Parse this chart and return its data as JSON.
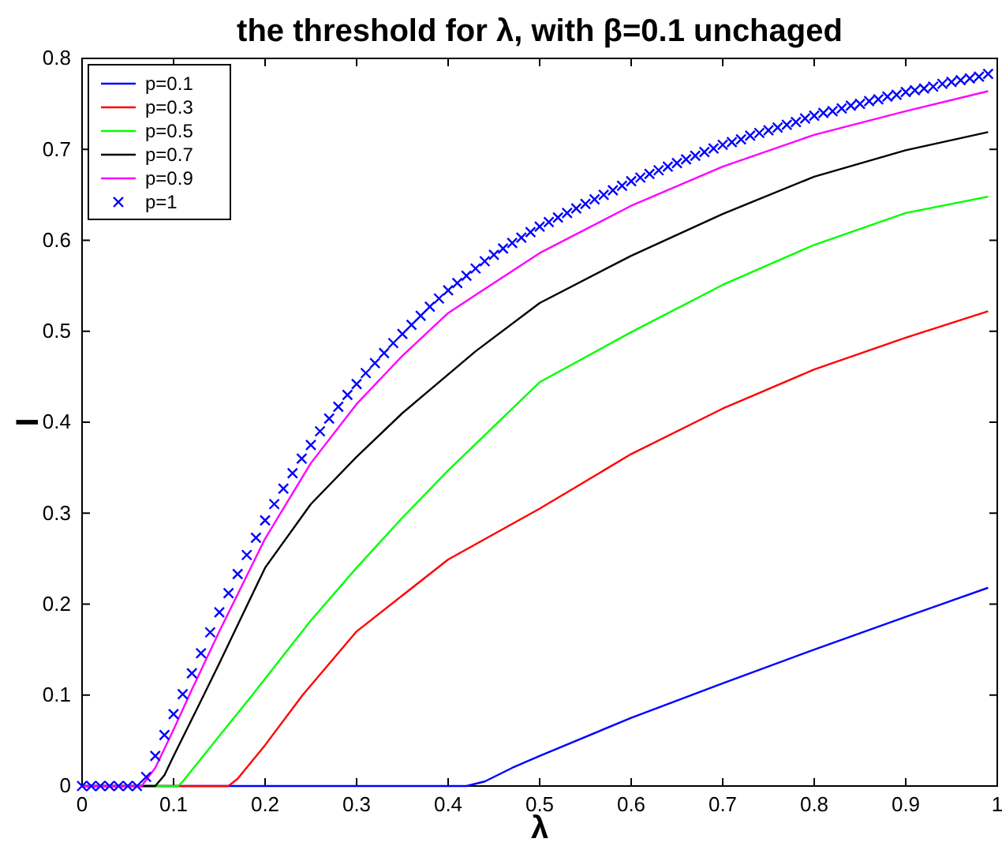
{
  "chart_data": {
    "type": "line",
    "title": "the threshold for λ, with β=0.1 unchaged",
    "xlabel": "λ",
    "ylabel": "I",
    "xlim": [
      0,
      1
    ],
    "ylim": [
      0,
      0.8
    ],
    "xticks": [
      0,
      0.1,
      0.2,
      0.3,
      0.4,
      0.5,
      0.6,
      0.7,
      0.8,
      0.9,
      1
    ],
    "yticks": [
      0,
      0.1,
      0.2,
      0.3,
      0.4,
      0.5,
      0.6,
      0.7,
      0.8
    ],
    "legend": "top left",
    "grid": false,
    "series": [
      {
        "name": "p=0.1",
        "color": "#0000ff",
        "marker": "none",
        "x": [
          0,
          0.42,
          0.44,
          0.47,
          0.5,
          0.6,
          0.7,
          0.8,
          0.9,
          0.99
        ],
        "values": [
          0,
          0,
          0.005,
          0.02,
          0.033,
          0.075,
          0.113,
          0.15,
          0.186,
          0.218
        ]
      },
      {
        "name": "p=0.3",
        "color": "#ff0000",
        "marker": "none",
        "x": [
          0,
          0.16,
          0.17,
          0.2,
          0.241,
          0.3,
          0.4,
          0.5,
          0.6,
          0.7,
          0.8,
          0.9,
          0.99
        ],
        "values": [
          0,
          0,
          0.008,
          0.045,
          0.1,
          0.17,
          0.249,
          0.305,
          0.365,
          0.415,
          0.458,
          0.493,
          0.522
        ]
      },
      {
        "name": "p=0.5",
        "color": "#00ff00",
        "marker": "none",
        "x": [
          0,
          0.105,
          0.11,
          0.15,
          0.186,
          0.2,
          0.25,
          0.3,
          0.35,
          0.4,
          0.43,
          0.5,
          0.6,
          0.7,
          0.8,
          0.9,
          0.99
        ],
        "values": [
          0,
          0,
          0.005,
          0.055,
          0.1,
          0.118,
          0.182,
          0.24,
          0.295,
          0.347,
          0.376,
          0.444,
          0.499,
          0.551,
          0.595,
          0.63,
          0.648
        ]
      },
      {
        "name": "p=0.7",
        "color": "#000000",
        "marker": "none",
        "x": [
          0,
          0.08,
          0.09,
          0.1,
          0.133,
          0.15,
          0.2,
          0.25,
          0.3,
          0.35,
          0.43,
          0.5,
          0.6,
          0.7,
          0.8,
          0.9,
          0.99
        ],
        "values": [
          0,
          0,
          0.012,
          0.033,
          0.1,
          0.135,
          0.24,
          0.31,
          0.362,
          0.41,
          0.478,
          0.531,
          0.583,
          0.629,
          0.67,
          0.699,
          0.719
        ]
      },
      {
        "name": "p=0.9",
        "color": "#ff00ff",
        "marker": "none",
        "x": [
          0,
          0.065,
          0.08,
          0.1,
          0.12,
          0.15,
          0.2,
          0.25,
          0.3,
          0.35,
          0.4,
          0.43,
          0.5,
          0.6,
          0.7,
          0.8,
          0.9,
          0.99
        ],
        "values": [
          0,
          0,
          0.02,
          0.062,
          0.106,
          0.17,
          0.272,
          0.355,
          0.42,
          0.473,
          0.52,
          0.54,
          0.586,
          0.638,
          0.681,
          0.716,
          0.742,
          0.764
        ]
      },
      {
        "name": "p=1",
        "color": "#0000ff",
        "type": "scatter",
        "marker": "cross",
        "x": [
          0,
          0.01,
          0.02,
          0.03,
          0.04,
          0.05,
          0.06,
          0.07,
          0.08,
          0.09,
          0.1,
          0.11,
          0.12,
          0.13,
          0.14,
          0.15,
          0.16,
          0.17,
          0.18,
          0.19,
          0.2,
          0.21,
          0.22,
          0.23,
          0.24,
          0.25,
          0.26,
          0.27,
          0.28,
          0.29,
          0.3,
          0.31,
          0.32,
          0.33,
          0.34,
          0.35,
          0.36,
          0.37,
          0.38,
          0.39,
          0.4,
          0.41,
          0.42,
          0.43,
          0.44,
          0.45,
          0.46,
          0.47,
          0.48,
          0.49,
          0.5,
          0.51,
          0.52,
          0.53,
          0.54,
          0.55,
          0.56,
          0.57,
          0.58,
          0.59,
          0.6,
          0.61,
          0.62,
          0.63,
          0.64,
          0.65,
          0.66,
          0.67,
          0.68,
          0.69,
          0.7,
          0.71,
          0.72,
          0.73,
          0.74,
          0.75,
          0.76,
          0.77,
          0.78,
          0.79,
          0.8,
          0.81,
          0.82,
          0.83,
          0.84,
          0.85,
          0.86,
          0.87,
          0.88,
          0.89,
          0.9,
          0.91,
          0.92,
          0.93,
          0.94,
          0.95,
          0.96,
          0.97,
          0.98,
          0.99
        ],
        "values": [
          0,
          0,
          0,
          0,
          0,
          0,
          0,
          0.01,
          0.033,
          0.056,
          0.079,
          0.101,
          0.124,
          0.146,
          0.169,
          0.191,
          0.212,
          0.233,
          0.254,
          0.273,
          0.292,
          0.31,
          0.327,
          0.344,
          0.36,
          0.375,
          0.39,
          0.404,
          0.417,
          0.43,
          0.442,
          0.454,
          0.465,
          0.476,
          0.487,
          0.497,
          0.507,
          0.517,
          0.527,
          0.536,
          0.545,
          0.553,
          0.561,
          0.569,
          0.577,
          0.584,
          0.591,
          0.597,
          0.603,
          0.609,
          0.615,
          0.62,
          0.625,
          0.63,
          0.635,
          0.64,
          0.645,
          0.65,
          0.655,
          0.66,
          0.665,
          0.669,
          0.673,
          0.677,
          0.681,
          0.685,
          0.689,
          0.693,
          0.697,
          0.701,
          0.705,
          0.708,
          0.711,
          0.715,
          0.718,
          0.721,
          0.724,
          0.727,
          0.73,
          0.734,
          0.737,
          0.74,
          0.742,
          0.745,
          0.748,
          0.75,
          0.753,
          0.755,
          0.758,
          0.76,
          0.763,
          0.765,
          0.767,
          0.769,
          0.772,
          0.774,
          0.776,
          0.778,
          0.78,
          0.783
        ]
      }
    ]
  }
}
